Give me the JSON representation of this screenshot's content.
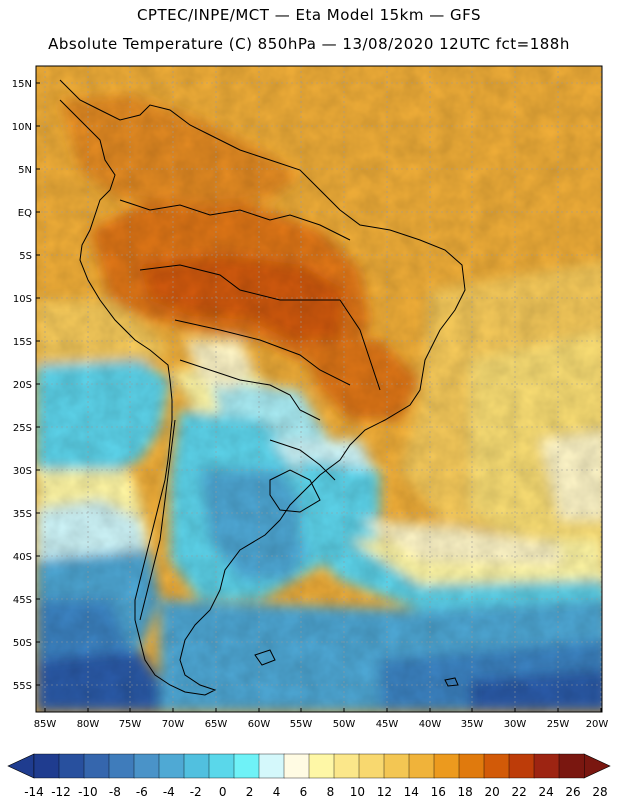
{
  "title_line1": "CPTEC/INPE/MCT —  Eta Model 15km — GFS",
  "title_line2": "Absolute Temperature (C) 850hPa — 13/08/2020 12UTC fct=188h",
  "map": {
    "lat_labels": [
      "15N",
      "10N",
      "5N",
      "EQ",
      "5S",
      "10S",
      "15S",
      "20S",
      "25S",
      "30S",
      "35S",
      "40S",
      "45S",
      "50S",
      "55S"
    ],
    "lon_labels": [
      "85W",
      "80W",
      "75W",
      "70W",
      "65W",
      "60W",
      "55W",
      "50W",
      "45W",
      "40W",
      "35W",
      "30W",
      "25W",
      "20W"
    ]
  },
  "colorbar": {
    "labels": [
      "-14",
      "-12",
      "-10",
      "-8",
      "-6",
      "-4",
      "-2",
      "0",
      "2",
      "4",
      "6",
      "8",
      "10",
      "12",
      "14",
      "16",
      "18",
      "20",
      "22",
      "24",
      "26",
      "28"
    ],
    "colors": [
      "#1f3c8f",
      "#28509e",
      "#3566ad",
      "#3f7cbb",
      "#4a93c8",
      "#4fa9d4",
      "#51c0df",
      "#5ad7ea",
      "#6ff2f7",
      "#d4f8fb",
      "#fffbe3",
      "#fef7a6",
      "#fbe78a",
      "#f8d86f",
      "#f3c653",
      "#f0b33a",
      "#ec9a1e",
      "#e07a0d",
      "#d25a08",
      "#bd3c09",
      "#9d2412",
      "#7a1710"
    ]
  },
  "colors": {
    "deep_blue": "#2c5aa8",
    "ocean_blue": "#4da6d3",
    "cyan": "#5cd3ea",
    "pale_yellow": "#fdf4a2",
    "yellow": "#f9dd73",
    "orange": "#efad38",
    "dark_orange": "#de7412",
    "hot": "#cf590a"
  }
}
